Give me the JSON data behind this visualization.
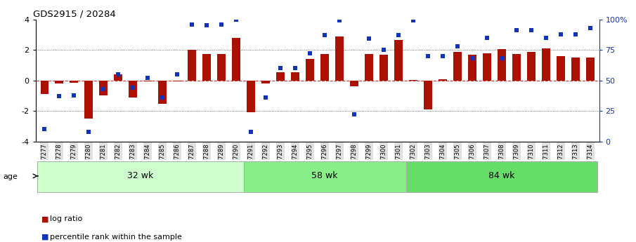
{
  "title": "GDS2915 / 20284",
  "samples": [
    "GSM97277",
    "GSM97278",
    "GSM97279",
    "GSM97280",
    "GSM97281",
    "GSM97282",
    "GSM97283",
    "GSM97284",
    "GSM97285",
    "GSM97286",
    "GSM97287",
    "GSM97288",
    "GSM97289",
    "GSM97290",
    "GSM97291",
    "GSM97292",
    "GSM97293",
    "GSM97294",
    "GSM97295",
    "GSM97296",
    "GSM97297",
    "GSM97298",
    "GSM97299",
    "GSM97300",
    "GSM97301",
    "GSM97302",
    "GSM97303",
    "GSM97304",
    "GSM97305",
    "GSM97306",
    "GSM97307",
    "GSM97308",
    "GSM97309",
    "GSM97310",
    "GSM97311",
    "GSM97312",
    "GSM97313",
    "GSM97314"
  ],
  "log_ratio": [
    -0.9,
    -0.2,
    -0.15,
    -2.5,
    -1.0,
    0.4,
    -1.1,
    -0.05,
    -1.55,
    -0.05,
    2.0,
    1.75,
    1.75,
    2.8,
    -2.1,
    -0.2,
    0.55,
    0.55,
    1.4,
    1.75,
    2.9,
    -0.4,
    1.75,
    1.7,
    2.65,
    0.05,
    -1.9,
    0.1,
    1.85,
    1.7,
    1.8,
    2.05,
    1.75,
    1.85,
    2.1,
    1.6,
    1.5,
    1.5
  ],
  "percentile": [
    10,
    37,
    38,
    8,
    43,
    55,
    44,
    52,
    36,
    55,
    96,
    95,
    96,
    100,
    8,
    36,
    60,
    60,
    72,
    87,
    99,
    22,
    84,
    75,
    87,
    99,
    70,
    70,
    78,
    68,
    85,
    68,
    91,
    91,
    85,
    88,
    88,
    93
  ],
  "groups": [
    {
      "label": "32 wk",
      "start": 0,
      "end": 14,
      "color": "#ccffcc"
    },
    {
      "label": "58 wk",
      "start": 14,
      "end": 25,
      "color": "#88ee88"
    },
    {
      "label": "84 wk",
      "start": 25,
      "end": 38,
      "color": "#66dd66"
    }
  ],
  "bar_color": "#aa1100",
  "dot_color": "#1133bb",
  "ylim": [
    -4,
    4
  ],
  "y2lim": [
    0,
    100
  ],
  "yticks_left": [
    -4,
    -2,
    0,
    2,
    4
  ],
  "yticks_right": [
    0,
    25,
    50,
    75,
    100
  ],
  "dotted_hlines": [
    -2,
    2
  ],
  "zero_hline_color": "#cc3333",
  "age_label": "age",
  "legend_bar": "log ratio",
  "legend_dot": "percentile rank within the sample",
  "bg_color": "#ffffff",
  "tick_bg_color": "#e0e0e0"
}
